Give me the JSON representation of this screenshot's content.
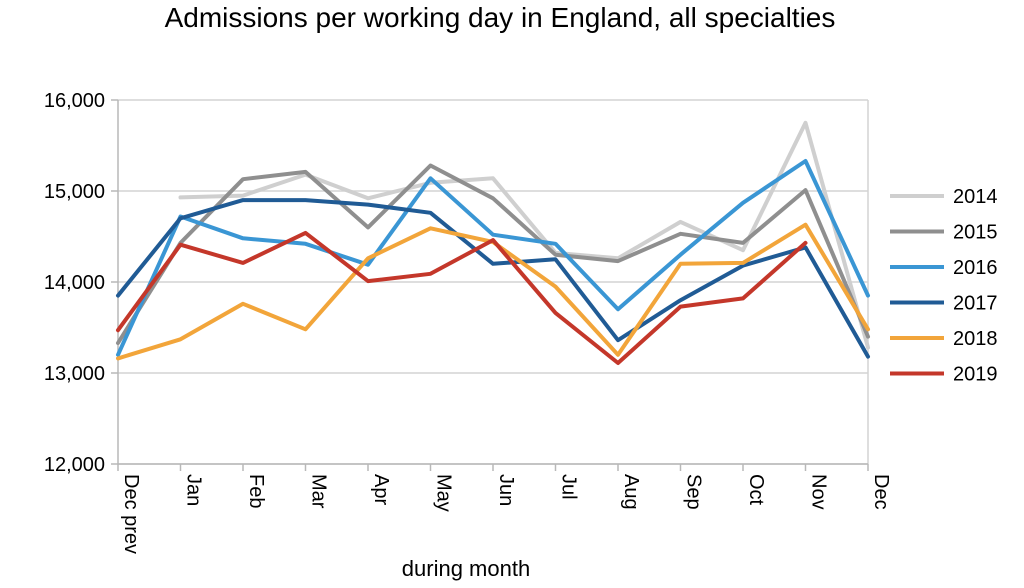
{
  "chart_data": {
    "type": "line",
    "title": "Admissions per working day in England, all specialties",
    "xlabel": "during  month",
    "ylabel": "",
    "ylim": [
      12000,
      16000
    ],
    "yticks": [
      12000,
      13000,
      14000,
      15000,
      16000
    ],
    "ytick_labels": [
      "12,000",
      "13,000",
      "14,000",
      "15,000",
      "16,000"
    ],
    "categories": [
      "Dec prev",
      "Jan",
      "Feb",
      "Mar",
      "Apr",
      "May",
      "Jun",
      "Jul",
      "Aug",
      "Sep",
      "Oct",
      "Nov",
      "Dec"
    ],
    "grid": "horizontal",
    "legend_position": "right",
    "series": [
      {
        "name": "2014",
        "color": "#cfcfcf",
        "values": [
          null,
          14930,
          14950,
          15180,
          14920,
          15090,
          15140,
          14320,
          14260,
          14660,
          14350,
          15750,
          13280
        ]
      },
      {
        "name": "2015",
        "color": "#8f8f8f",
        "values": [
          13330,
          14430,
          15130,
          15210,
          14600,
          15280,
          14920,
          14300,
          14230,
          14530,
          14430,
          15010,
          13400
        ]
      },
      {
        "name": "2016",
        "color": "#3a96d4",
        "values": [
          13200,
          14720,
          14480,
          14420,
          14190,
          15140,
          14520,
          14420,
          13700,
          14300,
          14870,
          15330,
          13850
        ]
      },
      {
        "name": "2017",
        "color": "#205b95",
        "values": [
          13850,
          14700,
          14900,
          14900,
          14850,
          14760,
          14200,
          14250,
          13360,
          13800,
          14180,
          14380,
          13180
        ]
      },
      {
        "name": "2018",
        "color": "#f2a53a",
        "values": [
          13160,
          13370,
          13760,
          13480,
          14260,
          14590,
          14440,
          13950,
          13200,
          14200,
          14210,
          14630,
          13480
        ]
      },
      {
        "name": "2019",
        "color": "#c4372a",
        "values": [
          13470,
          14410,
          14210,
          14540,
          14010,
          14090,
          14460,
          13660,
          13110,
          13730,
          13820,
          14430,
          null
        ]
      }
    ]
  }
}
